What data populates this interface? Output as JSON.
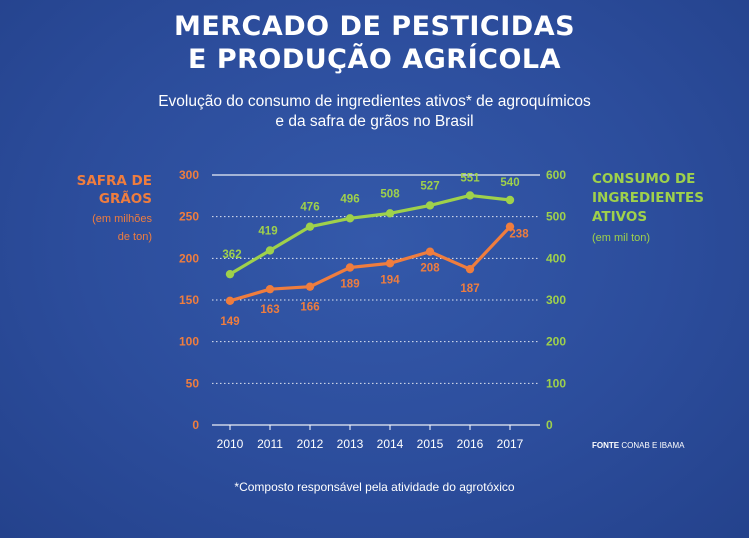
{
  "title_line1": "MERCADO DE PESTICIDAS",
  "title_line2": "E PRODUÇÃO AGRÍCOLA",
  "subtitle_line1": "Evolução do consumo de ingredientes ativos* de agroquímicos",
  "subtitle_line2": "e da safra de grãos no Brasil",
  "left_axis_title_line1": "SAFRA DE",
  "left_axis_title_line2": "GRÃOS",
  "left_axis_unit_line1": "(em milhões",
  "left_axis_unit_line2": "de ton)",
  "right_axis_title_line1": "CONSUMO DE",
  "right_axis_title_line2": "INGREDIENTES",
  "right_axis_title_line3": "ATIVOS",
  "right_axis_unit": "(em mil ton)",
  "source_label": "FONTE",
  "source_text": "CONAB E IBAMA",
  "footnote": "*Composto responsável pela atividade do agrotóxico",
  "colors": {
    "background": "#2d4f9e",
    "safra": "#ef7d3e",
    "consumo": "#9fd14b",
    "grid": "#ffffff"
  },
  "chart_data": {
    "type": "line",
    "x": [
      2010,
      2011,
      2012,
      2013,
      2014,
      2015,
      2016,
      2017
    ],
    "series": [
      {
        "name": "",
        "axis": "left",
        "color": "#ef7d3e",
        "values": [
          149,
          163,
          166,
          189,
          194,
          208,
          187,
          238
        ]
      },
      {
        "name": "",
        "axis": "right",
        "color": "#9fd14b",
        "values": [
          362,
          419,
          476,
          496,
          508,
          527,
          551,
          540
        ]
      }
    ],
    "y_left": {
      "ticks": [
        0,
        50,
        100,
        150,
        200,
        250,
        300
      ],
      "lim": [
        0,
        300
      ]
    },
    "y_right": {
      "ticks": [
        0,
        100,
        200,
        300,
        400,
        500,
        600
      ],
      "lim": [
        0,
        600
      ]
    },
    "grid": true,
    "grid_style": "dotted horizontal"
  }
}
